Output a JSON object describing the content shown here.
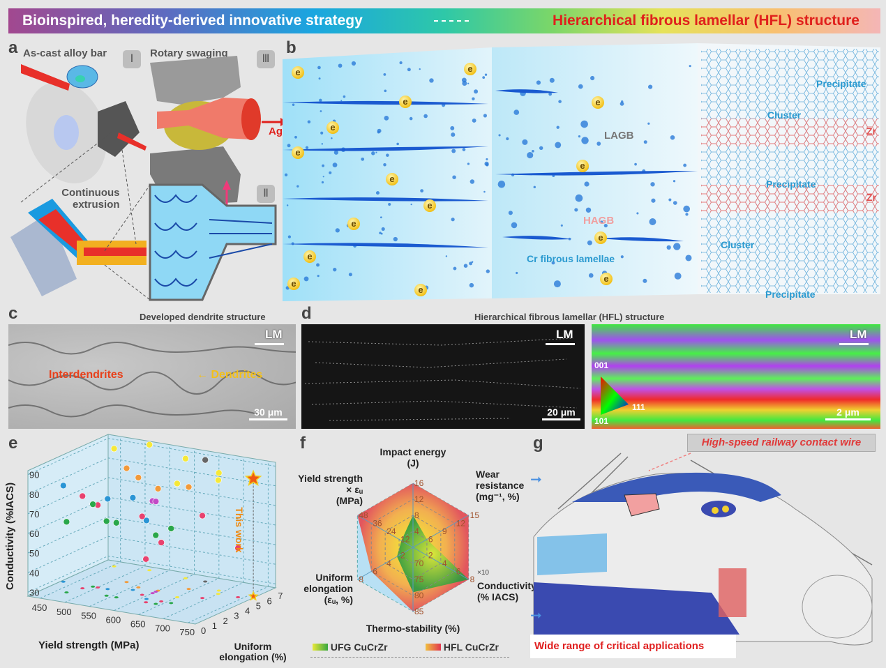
{
  "banner": {
    "left": "Bioinspired, heredity-derived innovative strategy",
    "right": "Hierarchical fibrous lamellar (HFL) structure"
  },
  "panel_a": {
    "label": "a",
    "as_cast": "As-cast alloy bar",
    "rotary": "Rotary swaging",
    "extrusion_1": "Continuous",
    "extrusion_2": "extrusion",
    "step1": "Ⅰ",
    "step2": "Ⅱ",
    "step3": "Ⅲ",
    "aging": "Aging"
  },
  "panel_b": {
    "label": "b",
    "e": "e",
    "lagb": "LAGB",
    "hagb": "HAGB",
    "cr_lamellae": "Cr fibrous lamellae",
    "precipitate": "Precipitate",
    "cluster": "Cluster",
    "zr": "Zr"
  },
  "panel_c": {
    "label": "c",
    "title": "Developed dendrite structure",
    "interdendrites": "Interdendrites",
    "dendrites": "Dendrites",
    "lm": "LM",
    "scale": "30 μm"
  },
  "panel_d": {
    "label": "d",
    "title": "Hierarchical fibrous lamellar (HFL) structure",
    "lm": "LM",
    "scale_sem": "20 μm",
    "scale_ebsd": "2 μm",
    "ipf": [
      "001",
      "111",
      "101"
    ]
  },
  "chart_data": [
    {
      "panel": "e",
      "type": "scatter3d",
      "xlabel": "Yield strength (MPa)",
      "ylabel": "Uniform elongation (%)",
      "zlabel": "Conductivity (%IACS)",
      "x_ticks": [
        450,
        500,
        550,
        600,
        650,
        700,
        750
      ],
      "y_ticks": [
        0,
        1,
        2,
        3,
        4,
        5,
        6,
        7
      ],
      "z_ticks": [
        30,
        40,
        50,
        60,
        70,
        80,
        90
      ],
      "annotation": "This work",
      "points": [
        {
          "x": 455,
          "y": 6.5,
          "z": 88,
          "color": "#f5e83a"
        },
        {
          "x": 520,
          "y": 6.8,
          "z": 92,
          "color": "#f5e83a"
        },
        {
          "x": 600,
          "y": 6.5,
          "z": 89,
          "color": "#f5e83a"
        },
        {
          "x": 650,
          "y": 3.5,
          "z": 86,
          "color": "#f5e83a"
        },
        {
          "x": 700,
          "y": 5,
          "z": 86,
          "color": "#f5e83a"
        },
        {
          "x": 690,
          "y": 5.5,
          "z": 88,
          "color": "#f5e83a"
        },
        {
          "x": 525,
          "y": 4.5,
          "z": 86,
          "color": "#f29a3a"
        },
        {
          "x": 560,
          "y": 4,
          "z": 84,
          "color": "#f29a3a"
        },
        {
          "x": 600,
          "y": 4,
          "z": 80,
          "color": "#f29a3a"
        },
        {
          "x": 640,
          "y": 5,
          "z": 80,
          "color": "#f29a3a"
        },
        {
          "x": 640,
          "y": 6.5,
          "z": 90,
          "color": "#666666"
        },
        {
          "x": 430,
          "y": 3,
          "z": 77,
          "color": "#2a95d5"
        },
        {
          "x": 520,
          "y": 3,
          "z": 74,
          "color": "#2a95d5"
        },
        {
          "x": 560,
          "y": 3.5,
          "z": 75,
          "color": "#2a95d5"
        },
        {
          "x": 610,
          "y": 2.5,
          "z": 68,
          "color": "#2a95d5"
        },
        {
          "x": 480,
          "y": 2.5,
          "z": 75,
          "color": "#e8426e"
        },
        {
          "x": 500,
          "y": 3,
          "z": 70,
          "color": "#e8426e"
        },
        {
          "x": 590,
          "y": 3,
          "z": 68,
          "color": "#e8426e"
        },
        {
          "x": 640,
          "y": 2.5,
          "z": 58,
          "color": "#e8426e"
        },
        {
          "x": 620,
          "y": 2,
          "z": 50,
          "color": "#e8426e"
        },
        {
          "x": 690,
          "y": 4,
          "z": 70,
          "color": "#e8426e"
        },
        {
          "x": 740,
          "y": 5,
          "z": 53,
          "color": "#e8426e"
        },
        {
          "x": 600,
          "y": 3.5,
          "z": 75,
          "color": "#c24bc6"
        },
        {
          "x": 600,
          "y": 3.8,
          "z": 74,
          "color": "#c24bc6"
        },
        {
          "x": 470,
          "y": 1.5,
          "z": 64,
          "color": "#2aa74a"
        },
        {
          "x": 490,
          "y": 3,
          "z": 70,
          "color": "#2aa74a"
        },
        {
          "x": 540,
          "y": 2,
          "z": 66,
          "color": "#2aa74a"
        },
        {
          "x": 560,
          "y": 2,
          "z": 66,
          "color": "#2aa74a"
        },
        {
          "x": 640,
          "y": 2,
          "z": 63,
          "color": "#2aa74a"
        },
        {
          "x": 660,
          "y": 2.5,
          "z": 66,
          "color": "#2aa74a"
        }
      ],
      "highlight": {
        "x": 760,
        "y": 5.5,
        "z": 88,
        "color": "#f05a14"
      }
    },
    {
      "panel": "f",
      "type": "radar",
      "axes": [
        {
          "name": "Impact energy",
          "unit": "(J)",
          "ticks": [
            4,
            8,
            12,
            16
          ]
        },
        {
          "name": "Wear resistance",
          "unit": "(mg⁻¹, %)",
          "ticks": [
            6,
            9,
            12,
            15
          ]
        },
        {
          "name": "Conductivity",
          "unit": "(% IACS)",
          "ticks": [
            2,
            4,
            6,
            8
          ],
          "multiplier": "×10"
        },
        {
          "name": "Thermo-stability (%)",
          "unit": "",
          "ticks": [
            70,
            75,
            80,
            85
          ]
        },
        {
          "name": "Uniform elongation",
          "unit": "(εᵤ, %)",
          "ticks": [
            2,
            4,
            6,
            8
          ]
        },
        {
          "name": "Yield strength × εᵤ",
          "unit": "(MPa)",
          "ticks": [
            12,
            24,
            36,
            48
          ]
        }
      ],
      "series": [
        {
          "name": "UFG CuCrZr",
          "values": [
            8,
            6,
            8,
            79,
            2.3,
            10
          ],
          "color": "#3aa840"
        },
        {
          "name": "HFL CuCrZr",
          "values": [
            16,
            15,
            8,
            85,
            6,
            48
          ],
          "color": "#e2564e"
        }
      ]
    }
  ],
  "panel_g": {
    "label": "g",
    "contact_wire": "High-speed railway contact wire",
    "applications": "Wide range of critical applications"
  }
}
